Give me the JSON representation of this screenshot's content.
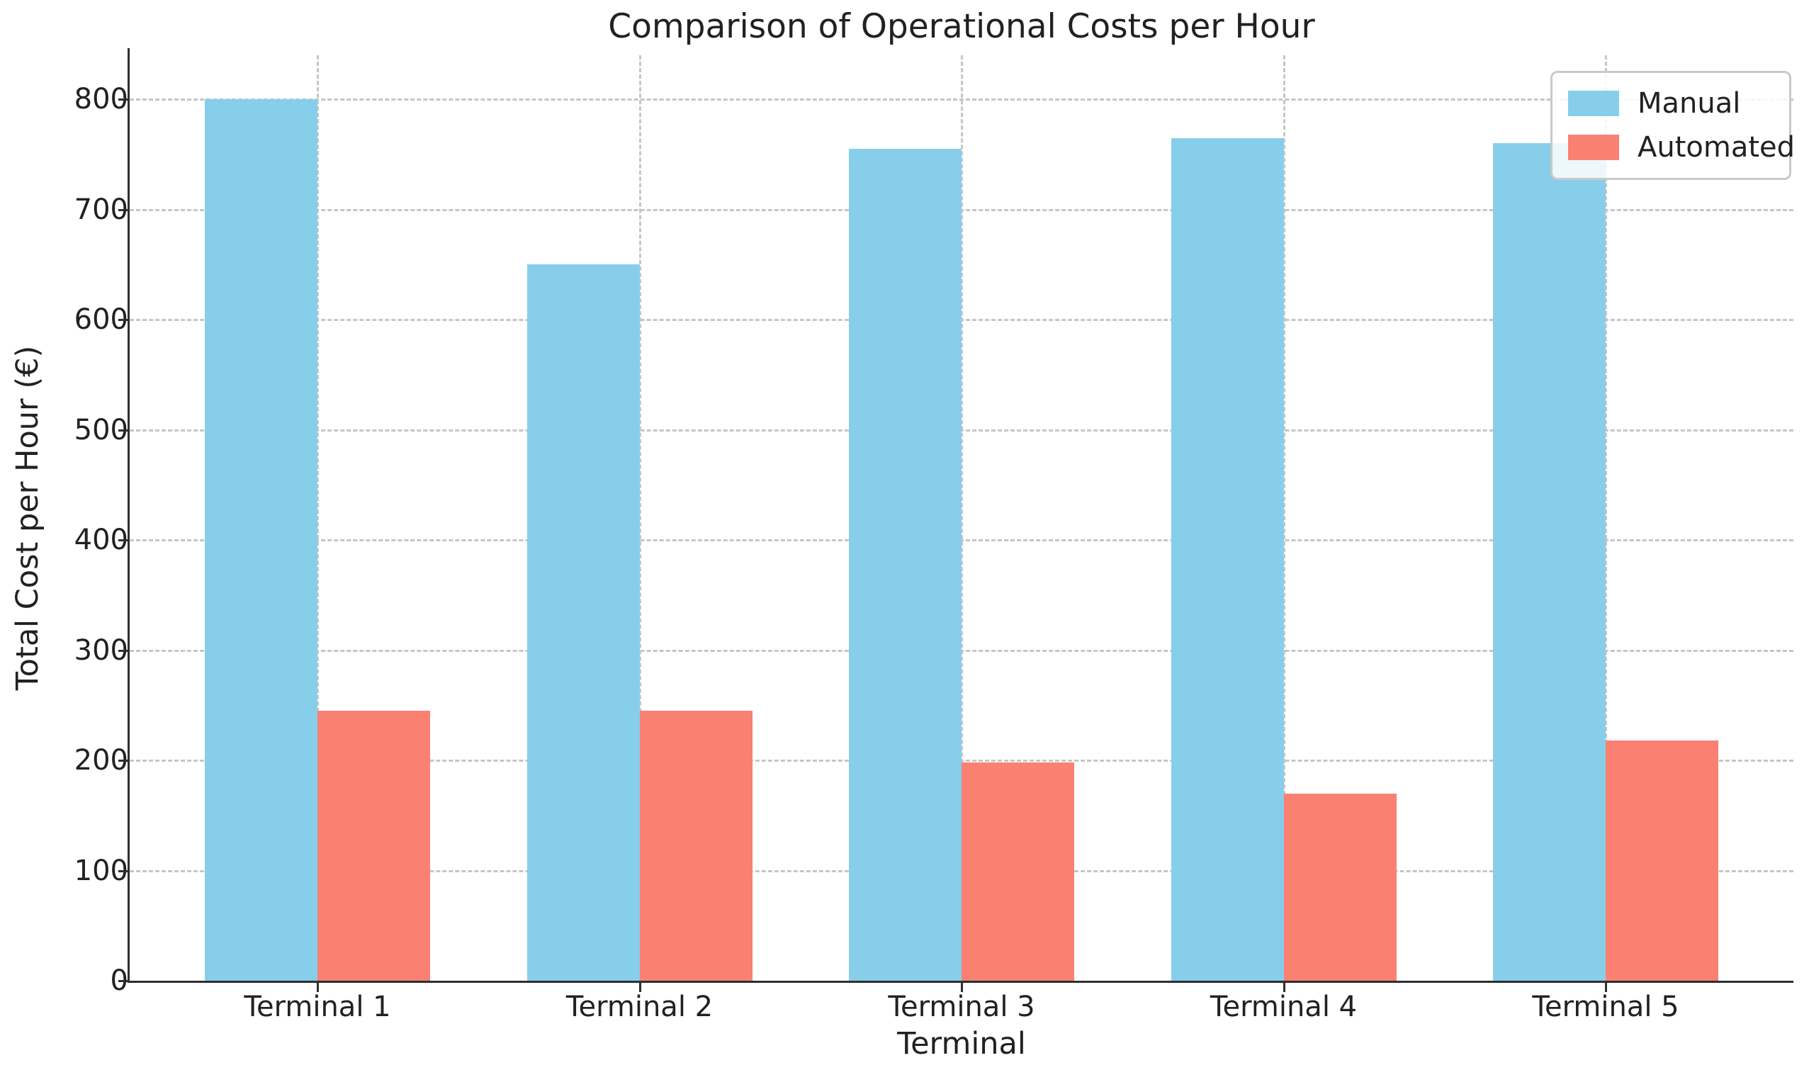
{
  "chart_data": {
    "type": "bar",
    "title": "Comparison of Operational Costs per Hour",
    "xlabel": "Terminal",
    "ylabel": "Total Cost per Hour (€)",
    "categories": [
      "Terminal 1",
      "Terminal 2",
      "Terminal 3",
      "Terminal 4",
      "Terminal 5"
    ],
    "series": [
      {
        "name": "Manual",
        "color": "#87CEEB",
        "values": [
          800,
          650,
          755,
          765,
          760
        ]
      },
      {
        "name": "Automated",
        "color": "#FA8072",
        "values": [
          245,
          245,
          198,
          170,
          218
        ]
      }
    ],
    "ylim": [
      0,
      840
    ],
    "yticks": [
      0,
      100,
      200,
      300,
      400,
      500,
      600,
      700,
      800
    ],
    "grid": true,
    "grid_style": "dashed",
    "grid_color": "#c6c6c6",
    "spine_color": "#2e2e2e",
    "text_color": "#212121",
    "legend_position": "upper right",
    "bar_width_fraction": 0.35
  }
}
